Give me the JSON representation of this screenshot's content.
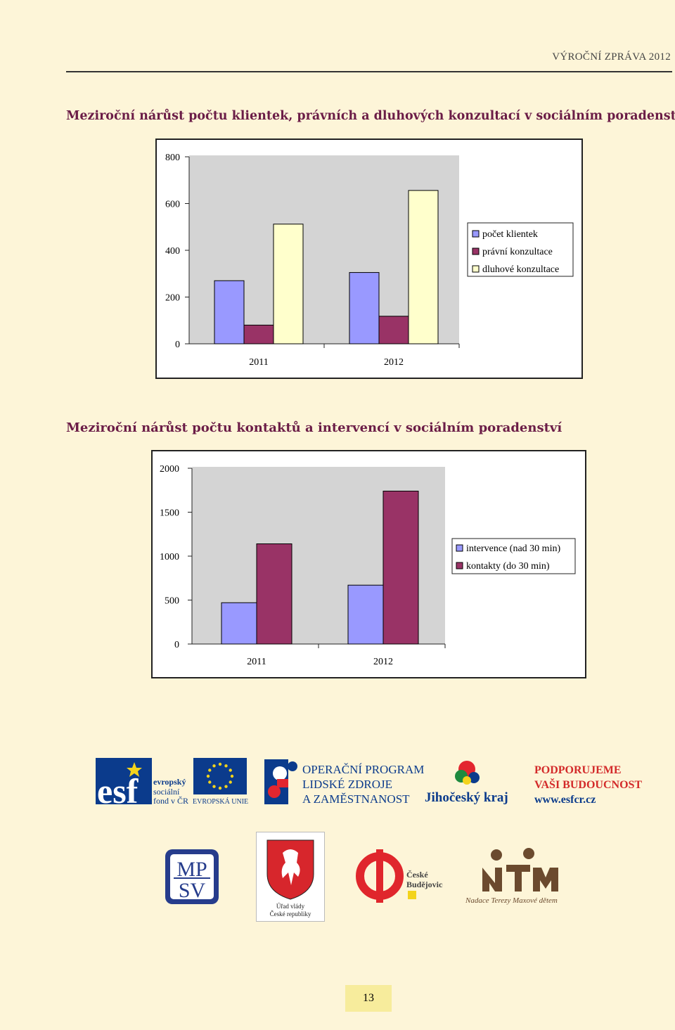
{
  "header": {
    "title": "VÝROČNÍ ZPRÁVA 2012"
  },
  "chart1_title": "Meziroční nárůst počtu klientek, právních a dluhových konzultací v sociálním poradenství",
  "chart2_title": "Meziroční nárůst počtu kontaktů a intervencí v sociálním poradenství",
  "chart_data": [
    {
      "type": "bar",
      "title": "Meziroční nárůst počtu klientek, právních a dluhových konzultací v sociálním poradenství",
      "categories": [
        "2011",
        "2012"
      ],
      "ylim": [
        0,
        800
      ],
      "yticks": [
        "0",
        "200",
        "400",
        "600",
        "800"
      ],
      "grid": false,
      "legend_position": "right",
      "series": [
        {
          "name": "počet klientek",
          "color": "#9999ff",
          "values": [
            270,
            305
          ]
        },
        {
          "name": "právní konzultace",
          "color": "#993366",
          "values": [
            80,
            118
          ]
        },
        {
          "name": "dluhové konzultace",
          "color": "#ffffcc",
          "values": [
            512,
            656
          ]
        }
      ]
    },
    {
      "type": "bar",
      "title": "Meziroční nárůst počtu kontaktů a intervencí v sociálním poradenství",
      "categories": [
        "2011",
        "2012"
      ],
      "ylim": [
        0,
        2000
      ],
      "yticks": [
        "0",
        "500",
        "1000",
        "1500",
        "2000"
      ],
      "grid": false,
      "legend_position": "right",
      "series": [
        {
          "name": "intervence (nad 30 min)",
          "color": "#9999ff",
          "values": [
            470,
            670
          ]
        },
        {
          "name": "kontakty (do 30 min)",
          "color": "#993366",
          "values": [
            1140,
            1740
          ]
        }
      ]
    }
  ],
  "logos": {
    "esf_line1": "evropský",
    "esf_line2": "sociální",
    "esf_line3": "fond v ČR",
    "eu_label": "EVROPSKÁ UNIE",
    "op_line1": "OPERAČNÍ PROGRAM",
    "op_line2": "LIDSKÉ ZDROJE",
    "op_line3": "A ZAMĚSTNANOST",
    "jk_label": "Jihočeský kraj",
    "pod_line1": "PODPORUJEME",
    "pod_line2": "VAŠI BUDOUCNOST",
    "pod_line3": "www.esfcr.cz",
    "mpsv_top": "MP",
    "mpsv_bottom": "SV",
    "uv_line1": "Úřad vlády",
    "uv_line2": "České republiky",
    "cb_line1": "České",
    "cb_line2": "Budějovice",
    "ntm_label": "Nadace Terezy Maxové dětem"
  },
  "footer": {
    "page_number": "13"
  }
}
